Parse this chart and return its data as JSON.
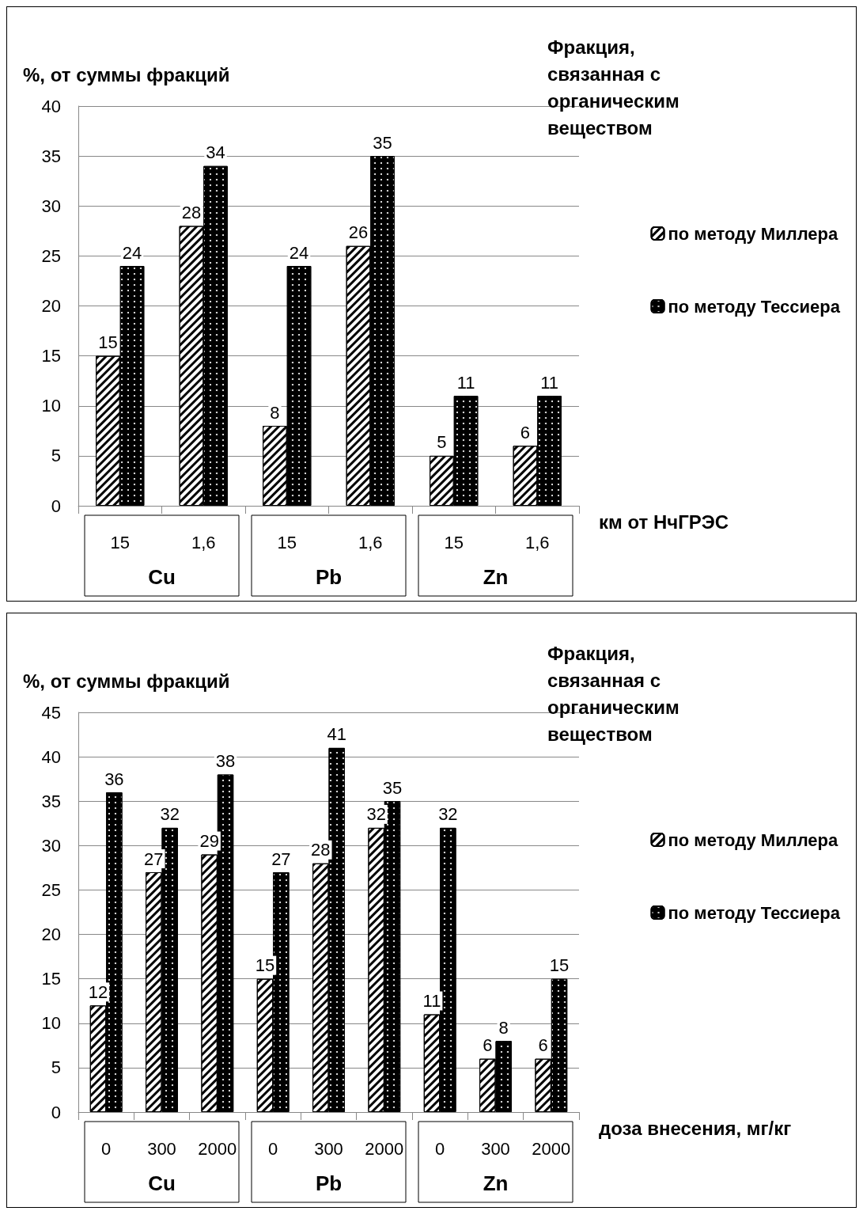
{
  "chart_data": [
    {
      "type": "bar",
      "title": "Фракция, связанная с органическим веществом",
      "ylabel": "%, от суммы фракций",
      "xlabel": "км от НчГРЭС",
      "categories": [
        "15",
        "1,6",
        "15",
        "1,6",
        "15",
        "1,6"
      ],
      "annotations": [
        "Cu",
        "Pb",
        "Zn"
      ],
      "ylim": [
        0,
        40
      ],
      "yticks": [
        0,
        5,
        10,
        15,
        20,
        25,
        30,
        35,
        40
      ],
      "grid": "y",
      "legend": "right",
      "data_labels": true,
      "series": [
        {
          "name": "по методу Миллера",
          "color": "#000000",
          "values": [
            15,
            28,
            8,
            26,
            5,
            6
          ]
        },
        {
          "name": "по методу Тессиера",
          "color": "#000000",
          "values": [
            24,
            34,
            24,
            35,
            11,
            11
          ]
        }
      ]
    },
    {
      "type": "bar",
      "title": "Фракция, связанная с органическим веществом",
      "ylabel": "%, от суммы фракций",
      "xlabel": "доза внесения, мг/кг",
      "categories": [
        "0",
        "300",
        "2000",
        "0",
        "300",
        "2000",
        "0",
        "300",
        "2000"
      ],
      "annotations": [
        "Cu",
        "Pb",
        "Zn"
      ],
      "ylim": [
        0,
        45
      ],
      "yticks": [
        0,
        5,
        10,
        15,
        20,
        25,
        30,
        35,
        40,
        45
      ],
      "grid": "y",
      "legend": "right",
      "data_labels": true,
      "series": [
        {
          "name": "по методу Миллера",
          "color": "#000000",
          "values": [
            12,
            27,
            29,
            15,
            28,
            32,
            11,
            6,
            6
          ]
        },
        {
          "name": "по методу Тессиера",
          "color": "#000000",
          "values": [
            36,
            32,
            38,
            27,
            41,
            35,
            32,
            8,
            15
          ]
        }
      ]
    }
  ]
}
